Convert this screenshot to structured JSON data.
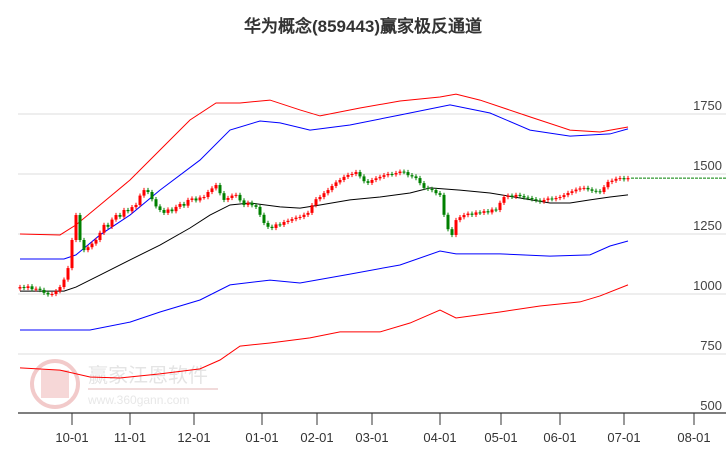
{
  "chart_data": {
    "type": "candlestick",
    "title": "华为概念(859443)赢家极反通道",
    "ylim": [
      500,
      2225
    ],
    "y_ticks": [
      500,
      750,
      1000,
      1250,
      1500,
      1750
    ],
    "grid": true,
    "x_ticks": [
      {
        "label": "10-01",
        "index": 13
      },
      {
        "label": "11-01",
        "index": 27.5
      },
      {
        "label": "12-01",
        "index": 43.5
      },
      {
        "label": "01-01",
        "index": 60.5
      },
      {
        "label": "02-01",
        "index": 74.25
      },
      {
        "label": "03-01",
        "index": 88
      },
      {
        "label": "04-01",
        "index": 105
      },
      {
        "label": "05-01",
        "index": 120.25
      },
      {
        "label": "06-01",
        "index": 135
      },
      {
        "label": "07-01",
        "index": 151
      },
      {
        "label": "08-01",
        "index": 168.5
      }
    ],
    "x_max_index": 176,
    "closes": [
      1029,
      1025,
      1032,
      1020,
      1022,
      1017,
      1005,
      998,
      1000,
      1012,
      1029,
      1060,
      1108,
      1225,
      1329,
      1225,
      1183,
      1195,
      1210,
      1225,
      1255,
      1288,
      1280,
      1310,
      1329,
      1322,
      1350,
      1345,
      1362,
      1371,
      1410,
      1433,
      1425,
      1395,
      1365,
      1350,
      1338,
      1352,
      1345,
      1363,
      1375,
      1368,
      1392,
      1398,
      1390,
      1402,
      1404,
      1425,
      1440,
      1454,
      1420,
      1392,
      1400,
      1410,
      1413,
      1390,
      1371,
      1380,
      1370,
      1363,
      1330,
      1296,
      1280,
      1275,
      1290,
      1288,
      1300,
      1305,
      1312,
      1318,
      1321,
      1330,
      1338,
      1370,
      1395,
      1404,
      1420,
      1433,
      1450,
      1465,
      1475,
      1488,
      1496,
      1500,
      1508,
      1490,
      1470,
      1463,
      1475,
      1482,
      1488,
      1495,
      1500,
      1498,
      1504,
      1510,
      1508,
      1495,
      1490,
      1483,
      1462,
      1442,
      1438,
      1433,
      1420,
      1413,
      1330,
      1270,
      1246,
      1308,
      1320,
      1329,
      1335,
      1330,
      1340,
      1338,
      1345,
      1340,
      1352,
      1350,
      1380,
      1404,
      1410,
      1405,
      1413,
      1408,
      1402,
      1400,
      1395,
      1390,
      1385,
      1392,
      1398,
      1395,
      1400,
      1404,
      1412,
      1421,
      1428,
      1435,
      1440,
      1442,
      1436,
      1430,
      1428,
      1425,
      1445,
      1467,
      1472,
      1480,
      1483,
      1478,
      1483
    ],
    "last_price": 1483,
    "bands": [
      {
        "name": "upper-outer",
        "color": "#ff0000",
        "points": [
          [
            0,
            1250
          ],
          [
            10,
            1246
          ],
          [
            14,
            1288
          ],
          [
            20,
            1371
          ],
          [
            27.5,
            1475
          ],
          [
            35,
            1600
          ],
          [
            42.5,
            1725
          ],
          [
            49,
            1796
          ],
          [
            55,
            1796
          ],
          [
            62.5,
            1808
          ],
          [
            70,
            1767
          ],
          [
            75,
            1742
          ],
          [
            85,
            1775
          ],
          [
            95,
            1804
          ],
          [
            105,
            1821
          ],
          [
            109,
            1833
          ],
          [
            115,
            1808
          ],
          [
            127.5,
            1738
          ],
          [
            137.5,
            1683
          ],
          [
            145,
            1675
          ],
          [
            152,
            1696
          ]
        ]
      },
      {
        "name": "upper-inner",
        "color": "#0000ff",
        "points": [
          [
            0,
            1146
          ],
          [
            11,
            1146
          ],
          [
            14,
            1163
          ],
          [
            20,
            1246
          ],
          [
            27.5,
            1329
          ],
          [
            35,
            1433
          ],
          [
            45,
            1558
          ],
          [
            52.5,
            1683
          ],
          [
            60,
            1721
          ],
          [
            65,
            1713
          ],
          [
            72.5,
            1683
          ],
          [
            82.5,
            1704
          ],
          [
            95,
            1746
          ],
          [
            107.5,
            1788
          ],
          [
            117.5,
            1754
          ],
          [
            127.5,
            1683
          ],
          [
            137.5,
            1658
          ],
          [
            147.5,
            1667
          ],
          [
            152,
            1688
          ]
        ]
      },
      {
        "name": "middle",
        "color": "#000000",
        "points": [
          [
            0,
            1012
          ],
          [
            11,
            1012
          ],
          [
            14,
            1029
          ],
          [
            20,
            1079
          ],
          [
            27.5,
            1142
          ],
          [
            35,
            1204
          ],
          [
            42.5,
            1275
          ],
          [
            47.5,
            1329
          ],
          [
            52.5,
            1371
          ],
          [
            57.5,
            1379
          ],
          [
            65,
            1363
          ],
          [
            70,
            1358
          ],
          [
            75,
            1371
          ],
          [
            82.5,
            1392
          ],
          [
            90,
            1404
          ],
          [
            97.5,
            1421
          ],
          [
            102.5,
            1442
          ],
          [
            110,
            1433
          ],
          [
            117.5,
            1421
          ],
          [
            125,
            1400
          ],
          [
            132.5,
            1379
          ],
          [
            137.5,
            1379
          ],
          [
            142.5,
            1392
          ],
          [
            147.5,
            1404
          ],
          [
            152,
            1413
          ]
        ]
      },
      {
        "name": "lower-inner",
        "color": "#0000ff",
        "points": [
          [
            0,
            850
          ],
          [
            17.5,
            850
          ],
          [
            27.5,
            883
          ],
          [
            35,
            925
          ],
          [
            45,
            975
          ],
          [
            52.5,
            1038
          ],
          [
            62.5,
            1058
          ],
          [
            70,
            1046
          ],
          [
            82.5,
            1083
          ],
          [
            95,
            1121
          ],
          [
            105,
            1179
          ],
          [
            109,
            1167
          ],
          [
            120,
            1167
          ],
          [
            132.5,
            1158
          ],
          [
            142.5,
            1163
          ],
          [
            147.5,
            1200
          ],
          [
            152,
            1221
          ]
        ]
      },
      {
        "name": "lower-outer",
        "color": "#ff0000",
        "points": [
          [
            0,
            692
          ],
          [
            10,
            683
          ],
          [
            17.5,
            654
          ],
          [
            25,
            650
          ],
          [
            35,
            667
          ],
          [
            45,
            688
          ],
          [
            50,
            725
          ],
          [
            55,
            783
          ],
          [
            62.5,
            796
          ],
          [
            72.5,
            817
          ],
          [
            80,
            842
          ],
          [
            90,
            842
          ],
          [
            97.5,
            879
          ],
          [
            105,
            933
          ],
          [
            109,
            900
          ],
          [
            120,
            925
          ],
          [
            130,
            950
          ],
          [
            140,
            967
          ],
          [
            145,
            992
          ],
          [
            152,
            1038
          ]
        ]
      }
    ],
    "colors": {
      "up": "#ff0000",
      "down": "#008000",
      "grid": "#dddddd",
      "last_line": "#008000"
    }
  },
  "watermark": {
    "seal_text": "江赢恩家",
    "brand": "赢家江恩软件",
    "url": "www.360gann.com"
  }
}
